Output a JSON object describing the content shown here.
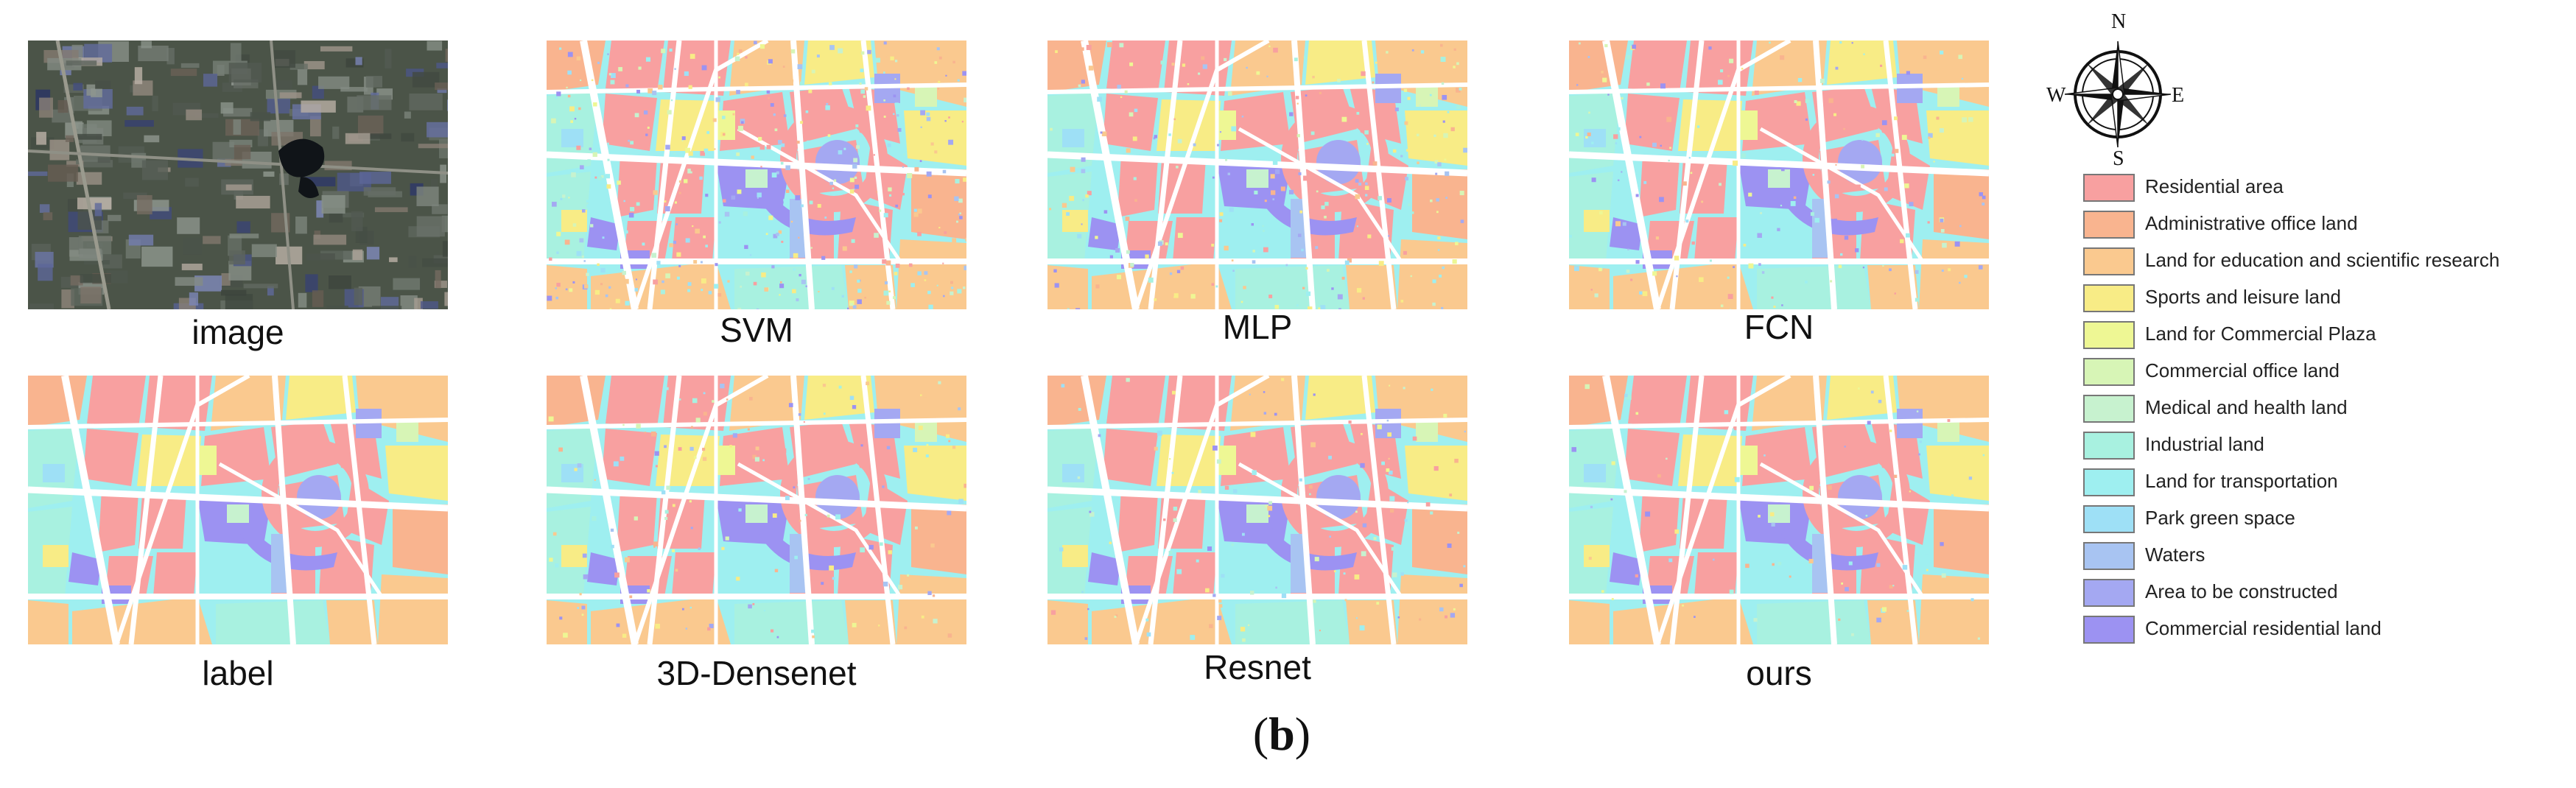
{
  "figure_label": {
    "open": "(",
    "letter": "b",
    "close": ")"
  },
  "panels": [
    {
      "id": "image",
      "caption": "image",
      "kind": "satellite"
    },
    {
      "id": "svm",
      "caption": "SVM",
      "kind": "map",
      "noise": 0.08
    },
    {
      "id": "mlp",
      "caption": "MLP",
      "kind": "map",
      "noise": 0.05
    },
    {
      "id": "fcn",
      "caption": "FCN",
      "kind": "map",
      "noise": 0.035
    },
    {
      "id": "label",
      "caption": "label",
      "kind": "map",
      "noise": 0
    },
    {
      "id": "densenet",
      "caption": "3D-Densenet",
      "kind": "map",
      "noise": 0.03
    },
    {
      "id": "resnet",
      "caption": "Resnet",
      "kind": "map",
      "noise": 0.025
    },
    {
      "id": "ours",
      "caption": "ours",
      "kind": "map",
      "noise": 0.015
    }
  ],
  "compass": {
    "n": "N",
    "s": "S",
    "e": "E",
    "w": "W"
  },
  "legend": [
    {
      "label": "Residential area",
      "color": "#F8A0A0"
    },
    {
      "label": "Administrative office land",
      "color": "#F9B48F"
    },
    {
      "label": "Land for education and scientific research",
      "color": "#FAC98F"
    },
    {
      "label": "Sports and leisure land",
      "color": "#F8EC86"
    },
    {
      "label": "Land for Commercial Plaza",
      "color": "#EEF794"
    },
    {
      "label": "Commercial office land",
      "color": "#D7F5B6"
    },
    {
      "label": "Medical and health land",
      "color": "#C7F2CF"
    },
    {
      "label": "Industrial land",
      "color": "#A8F1E0"
    },
    {
      "label": "Land for transportation",
      "color": "#9EEFF0"
    },
    {
      "label": "Park green space",
      "color": "#9EE0F6"
    },
    {
      "label": "Waters",
      "color": "#A8C4F2"
    },
    {
      "label": "Area to be constructed",
      "color": "#A4A8F2"
    },
    {
      "label": "Commercial residential land",
      "color": "#9C92F2"
    }
  ]
}
